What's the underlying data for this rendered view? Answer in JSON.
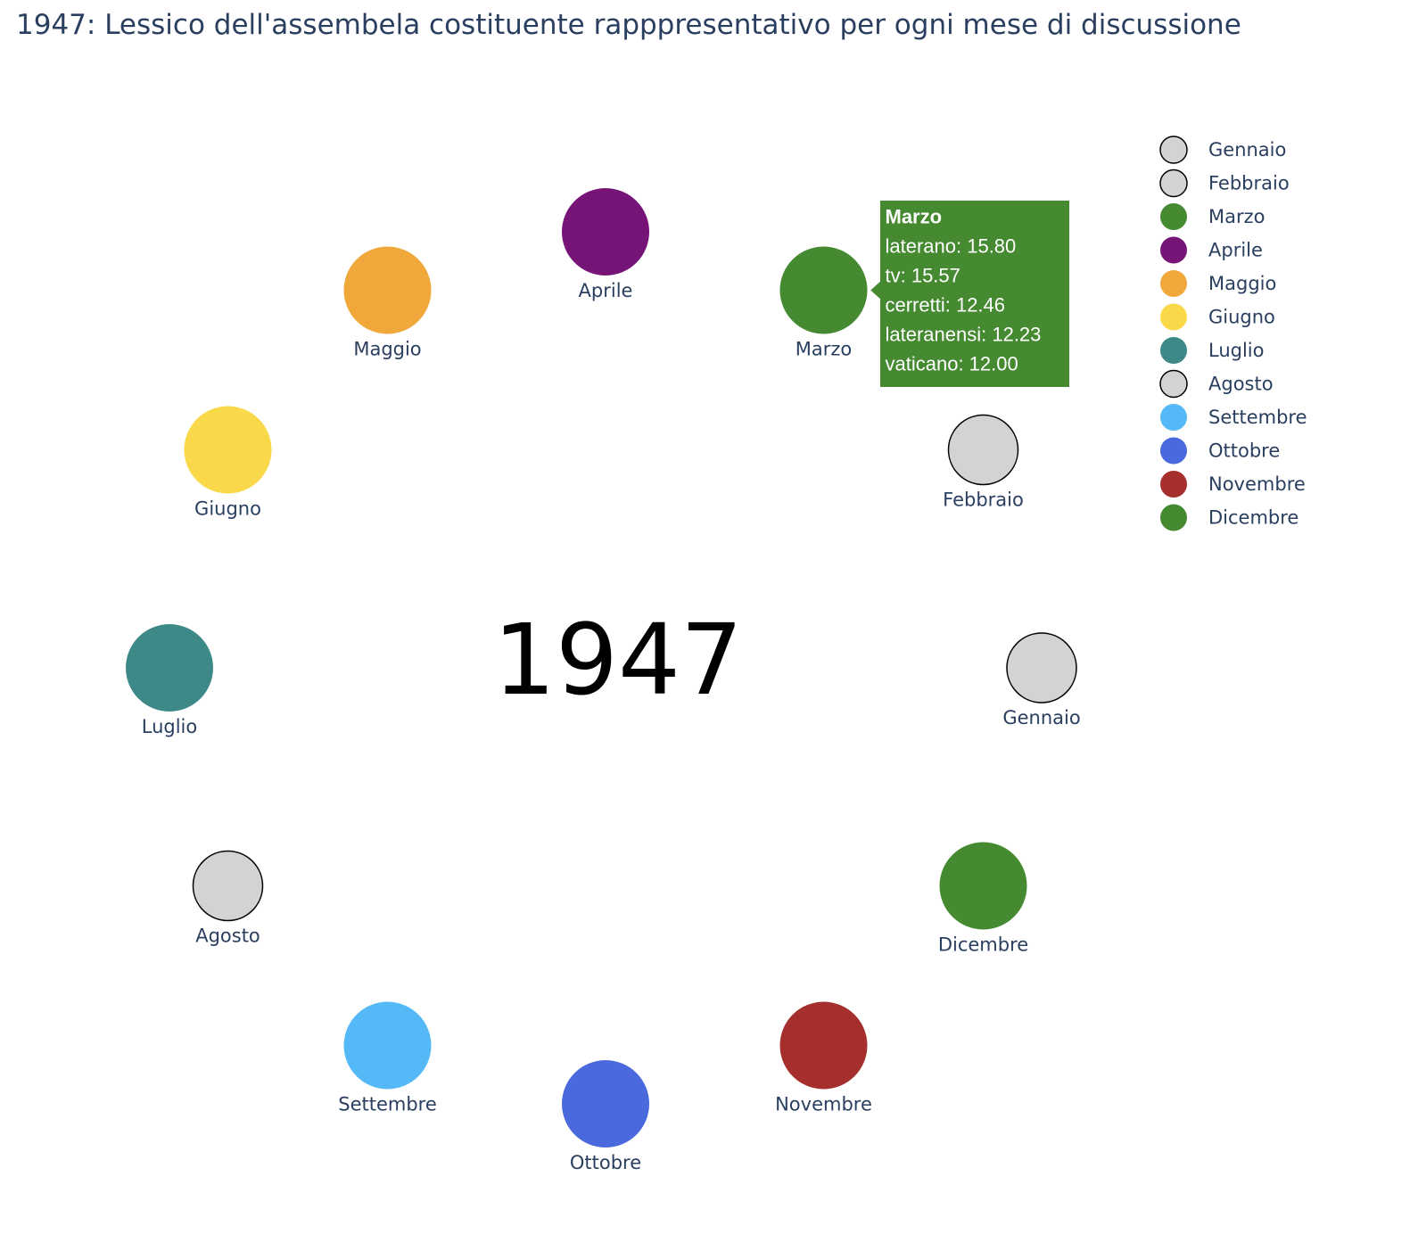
{
  "chart_data": {
    "type": "scatter",
    "title": "1947: Lessico dell'assembela costituente rapppresentativo per ogni mese di discussione",
    "center_label": "1947",
    "months": [
      {
        "name": "Gennaio",
        "color": "#d3d3d3",
        "outlined": true
      },
      {
        "name": "Febbraio",
        "color": "#d3d3d3",
        "outlined": true
      },
      {
        "name": "Marzo",
        "color": "#458a31",
        "outlined": false
      },
      {
        "name": "Aprile",
        "color": "#761477",
        "outlined": false
      },
      {
        "name": "Maggio",
        "color": "#f0a83b",
        "outlined": false
      },
      {
        "name": "Giugno",
        "color": "#f9d949",
        "outlined": false
      },
      {
        "name": "Luglio",
        "color": "#3d8987",
        "outlined": false
      },
      {
        "name": "Agosto",
        "color": "#d3d3d3",
        "outlined": true
      },
      {
        "name": "Settembre",
        "color": "#55b9f7",
        "outlined": false
      },
      {
        "name": "Ottobre",
        "color": "#4a69dc",
        "outlined": false
      },
      {
        "name": "Novembre",
        "color": "#a52f2c",
        "outlined": false
      },
      {
        "name": "Dicembre",
        "color": "#458a31",
        "outlined": false
      }
    ],
    "legend_position": "top-right",
    "hover": {
      "month": "Marzo",
      "color": "#458a31",
      "title": "Marzo",
      "lines": [
        "laterano: 15.80",
        "tv: 15.57",
        "cerretti: 12.46",
        "lateranensi: 12.23",
        "vaticano: 12.00"
      ]
    }
  }
}
